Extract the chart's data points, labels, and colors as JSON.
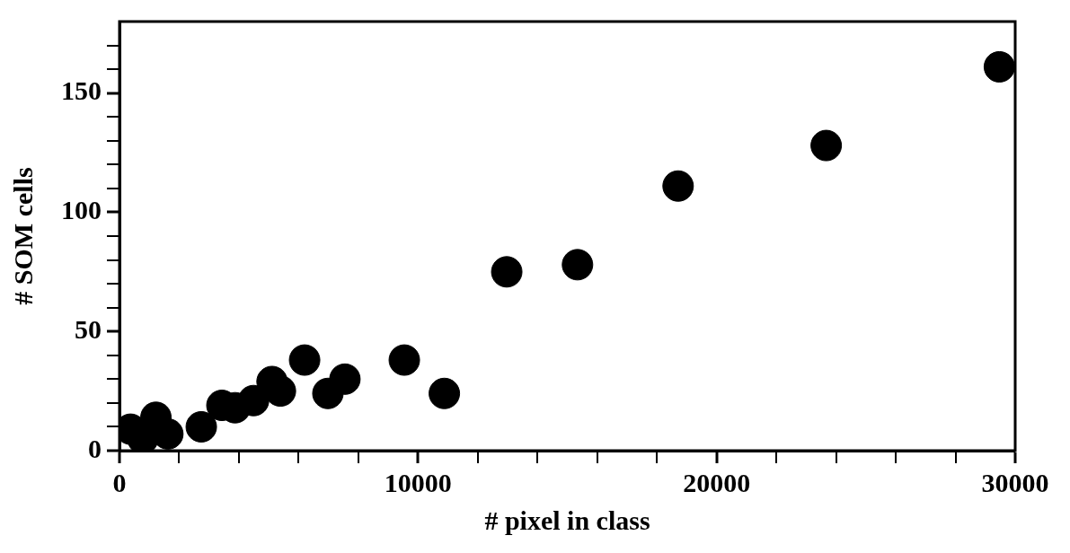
{
  "chart_data": {
    "type": "scatter",
    "xlabel": "# pixel in class",
    "ylabel": "# SOM cells",
    "marker": "circle",
    "grid": false,
    "legend": false,
    "xlim": [
      0,
      30000
    ],
    "ylim": [
      0,
      180
    ],
    "xticks": [
      0,
      {
        "value": 2000,
        "label": null
      },
      {
        "value": 4000,
        "label": null
      },
      {
        "value": 6000,
        "label": null
      },
      {
        "value": 8000,
        "label": null
      },
      10000,
      {
        "value": 12000,
        "label": null
      },
      {
        "value": 14000,
        "label": null
      },
      {
        "value": 16000,
        "label": null
      },
      {
        "value": 18000,
        "label": null
      },
      20000,
      {
        "value": 22000,
        "label": null
      },
      {
        "value": 24000,
        "label": null
      },
      {
        "value": 26000,
        "label": null
      },
      {
        "value": 28000,
        "label": null
      },
      30000
    ],
    "yticks": [
      0,
      {
        "value": 10,
        "label": null
      },
      {
        "value": 20,
        "label": null
      },
      {
        "value": 30,
        "label": null
      },
      {
        "value": 40,
        "label": null
      },
      50,
      {
        "value": 60,
        "label": null
      },
      {
        "value": 70,
        "label": null
      },
      {
        "value": 80,
        "label": null
      },
      {
        "value": 90,
        "label": null
      },
      100,
      {
        "value": 110,
        "label": null
      },
      {
        "value": 120,
        "label": null
      },
      {
        "value": 130,
        "label": null
      },
      {
        "value": 140,
        "label": null
      },
      150,
      {
        "value": 160,
        "label": null
      },
      {
        "value": 170,
        "label": null
      }
    ],
    "series": [
      {
        "color": "#000000",
        "x": [
          370,
          780,
          1220,
          1620,
          2740,
          3430,
          3870,
          4490,
          5110,
          5390,
          6200,
          6980,
          7550,
          9540,
          10880,
          12970,
          15340,
          18710,
          23670,
          29470
        ],
        "values": [
          9,
          5,
          14,
          7,
          10,
          19,
          18,
          21,
          29,
          25,
          38,
          24,
          30,
          38,
          24,
          75,
          78,
          111,
          128,
          161
        ]
      }
    ]
  }
}
